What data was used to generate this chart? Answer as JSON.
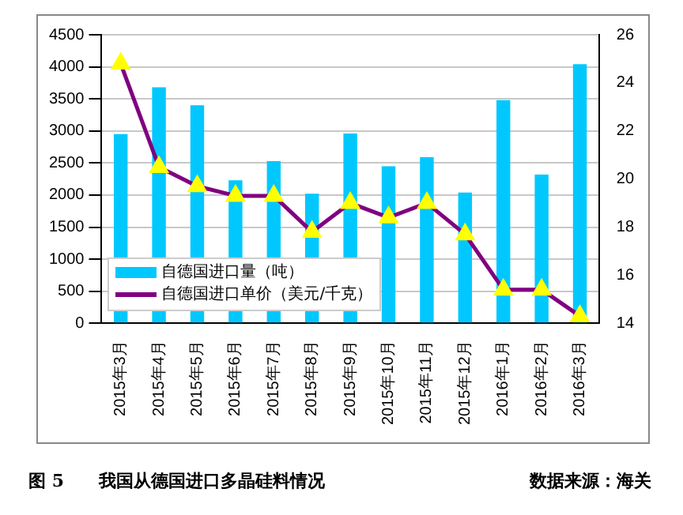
{
  "chart_data": {
    "type": "bar",
    "title": "图 5　　我国从德国进口多晶硅料情况",
    "annotations": [
      "数据来源：海关"
    ],
    "categories": [
      "2015年3月",
      "2015年4月",
      "2015年5月",
      "2015年6月",
      "2015年7月",
      "2015年8月",
      "2015年9月",
      "2015年10月",
      "2015年11月",
      "2015年12月",
      "2016年1月",
      "2016年2月",
      "2016年3月"
    ],
    "series": [
      {
        "name": "自德国进口量（吨）",
        "color": "#00c8ff",
        "values": [
          2950,
          3680,
          3400,
          2230,
          2530,
          2020,
          2960,
          2450,
          2590,
          2040,
          3480,
          2320,
          4040
        ]
      },
      {
        "name": "自德国进口单价（美元/千克）",
        "type": "line",
        "axis": "y2",
        "color": "#800080",
        "marker": "triangle",
        "values": [
          24.8,
          20.5,
          19.7,
          19.3,
          19.3,
          17.8,
          19.0,
          18.4,
          19.0,
          17.7,
          15.4,
          15.4,
          14.3
        ]
      }
    ],
    "ylim": [
      0,
      4500
    ],
    "yticks": [
      0,
      500,
      1000,
      1500,
      2000,
      2500,
      3000,
      3500,
      4000,
      4500
    ],
    "y2lim": [
      14,
      26
    ],
    "y2ticks": [
      14,
      16,
      18,
      20,
      22,
      24,
      26
    ],
    "grid": "y",
    "legend": "bottom left"
  }
}
